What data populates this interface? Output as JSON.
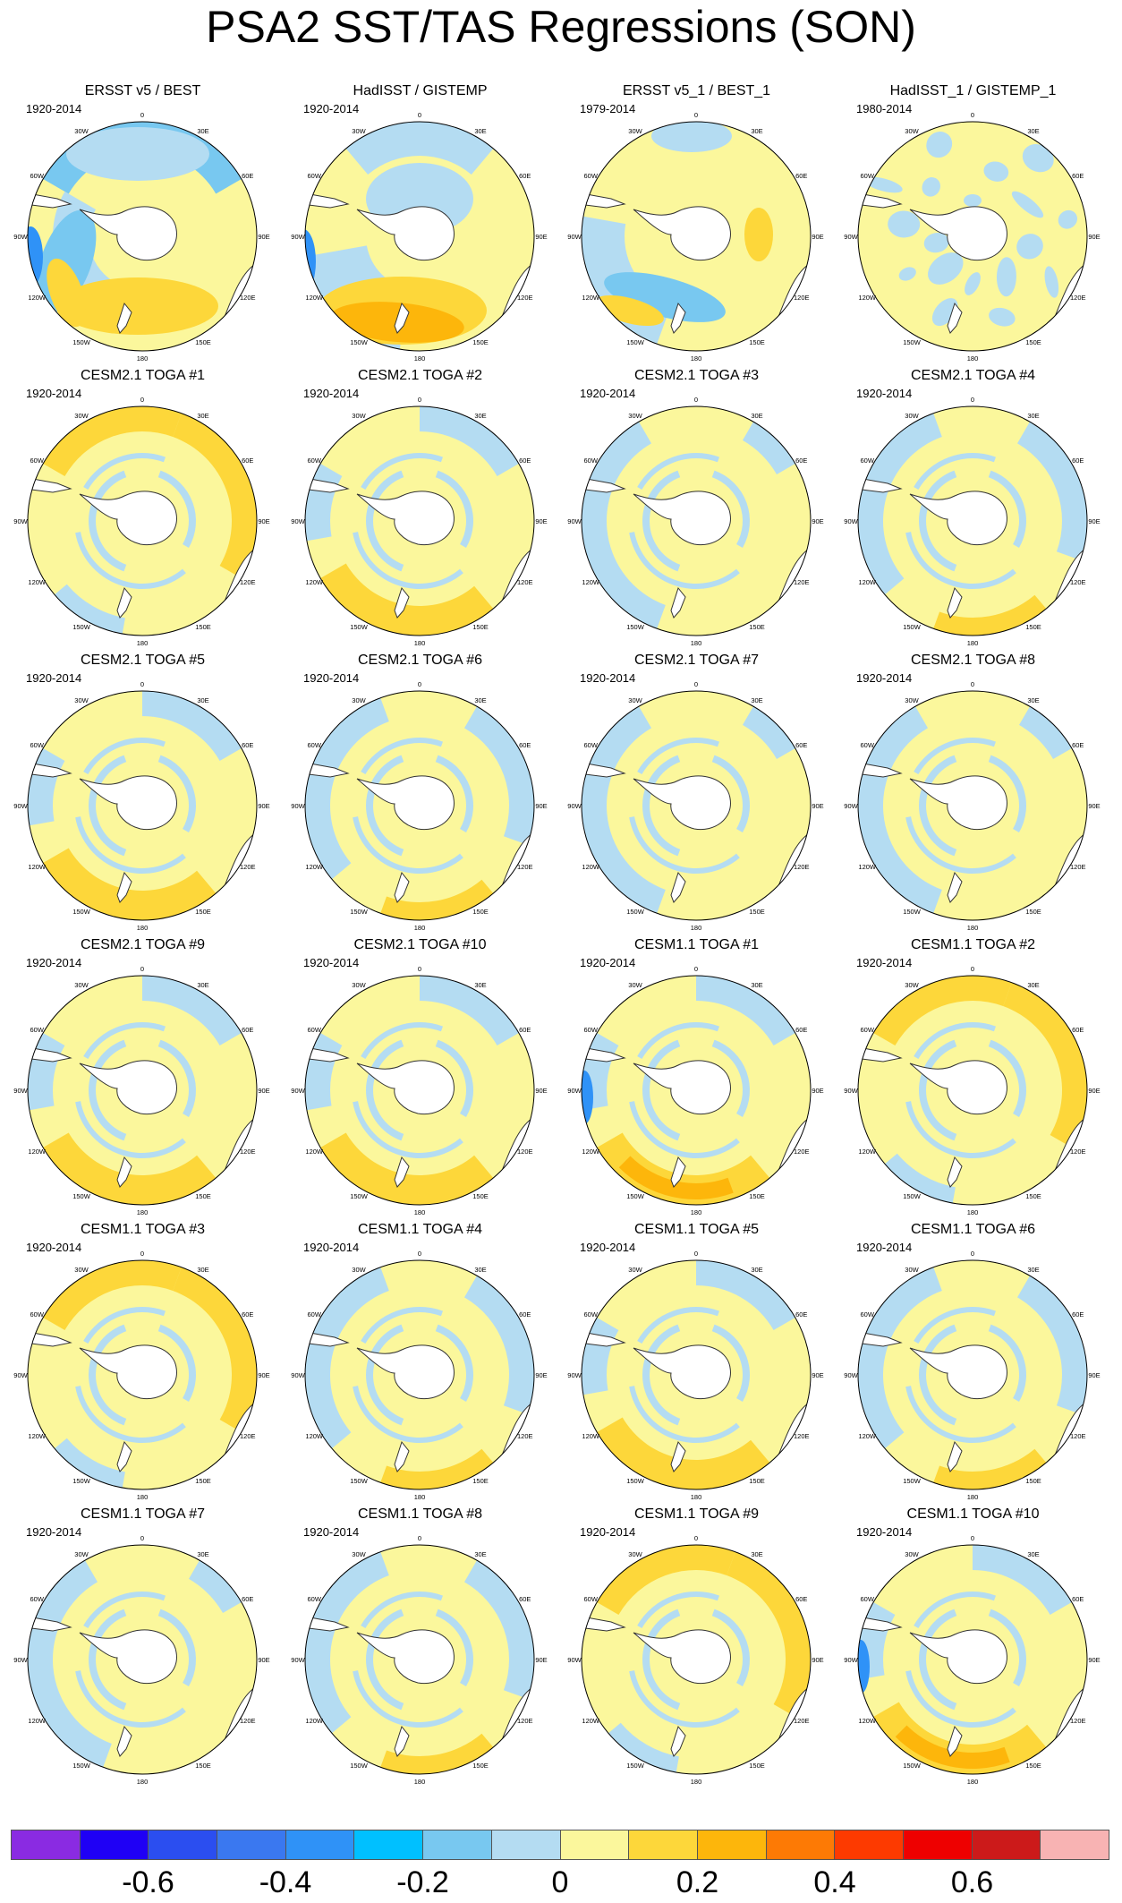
{
  "title": "PSA2 SST/TAS Regressions (SON)",
  "longitude_labels": [
    "0",
    "30E",
    "60E",
    "90E",
    "120E",
    "150E",
    "180",
    "150W",
    "120W",
    "90W",
    "60W",
    "30W"
  ],
  "panels": [
    {
      "title": "ERSST v5 / BEST",
      "years": "1920-2014",
      "pattern": "obs_ersst"
    },
    {
      "title": "HadISST / GISTEMP",
      "years": "1920-2014",
      "pattern": "obs_hadisst"
    },
    {
      "title": "ERSST v5_1 / BEST_1",
      "years": "1979-2014",
      "pattern": "obs_ersst_1"
    },
    {
      "title": "HadISST_1 / GISTEMP_1",
      "years": "1980-2014",
      "pattern": "obs_hadisst_1"
    },
    {
      "title": "CESM2.1 TOGA #1",
      "years": "1920-2014",
      "pattern": "warm_ring"
    },
    {
      "title": "CESM2.1 TOGA #2",
      "years": "1920-2014",
      "pattern": "warm_south"
    },
    {
      "title": "CESM2.1 TOGA #3",
      "years": "1920-2014",
      "pattern": "neutral"
    },
    {
      "title": "CESM2.1 TOGA #4",
      "years": "1920-2014",
      "pattern": "neutral_blue"
    },
    {
      "title": "CESM2.1 TOGA #5",
      "years": "1920-2014",
      "pattern": "warm_south"
    },
    {
      "title": "CESM2.1 TOGA #6",
      "years": "1920-2014",
      "pattern": "neutral_blue"
    },
    {
      "title": "CESM2.1 TOGA #7",
      "years": "1920-2014",
      "pattern": "neutral"
    },
    {
      "title": "CESM2.1 TOGA #8",
      "years": "1920-2014",
      "pattern": "neutral"
    },
    {
      "title": "CESM2.1 TOGA #9",
      "years": "1920-2014",
      "pattern": "warm_south"
    },
    {
      "title": "CESM2.1 TOGA #10",
      "years": "1920-2014",
      "pattern": "warm_south"
    },
    {
      "title": "CESM1.1 TOGA #1",
      "years": "1920-2014",
      "pattern": "warm_south_strong"
    },
    {
      "title": "CESM1.1 TOGA #2",
      "years": "1920-2014",
      "pattern": "warm_ring"
    },
    {
      "title": "CESM1.1 TOGA #3",
      "years": "1920-2014",
      "pattern": "warm_ring"
    },
    {
      "title": "CESM1.1 TOGA #4",
      "years": "1920-2014",
      "pattern": "neutral_blue"
    },
    {
      "title": "CESM1.1 TOGA #5",
      "years": "1920-2014",
      "pattern": "warm_south"
    },
    {
      "title": "CESM1.1 TOGA #6",
      "years": "1920-2014",
      "pattern": "neutral_blue"
    },
    {
      "title": "CESM1.1 TOGA #7",
      "years": "1920-2014",
      "pattern": "neutral"
    },
    {
      "title": "CESM1.1 TOGA #8",
      "years": "1920-2014",
      "pattern": "neutral_blue"
    },
    {
      "title": "CESM1.1 TOGA #9",
      "years": "1920-2014",
      "pattern": "warm_ring"
    },
    {
      "title": "CESM1.1 TOGA #10",
      "years": "1920-2014",
      "pattern": "warm_south_strong"
    }
  ],
  "colorbar": {
    "colors": [
      "#8a2be2",
      "#1f00f5",
      "#2b4ef0",
      "#3a78f0",
      "#2f92f7",
      "#00c0ff",
      "#78c8f0",
      "#b4dcf2",
      "#fbf79c",
      "#fdd73a",
      "#fdb60b",
      "#fd7a05",
      "#fd3a00",
      "#ee0000",
      "#cc1a1a",
      "#f8b3b3"
    ],
    "tick_labels": [
      "-0.6",
      "-0.4",
      "-0.2",
      "0",
      "0.2",
      "0.4",
      "0.6"
    ],
    "tick_boundary_index": [
      2,
      4,
      6,
      8,
      10,
      12,
      14
    ]
  },
  "palette": {
    "neutral_warm": "#fbf79c",
    "light_blue": "#b4dcf2",
    "mid_blue": "#78c8f0",
    "cyan": "#2f92f7",
    "gold": "#fdd73a",
    "orange": "#fdb60b",
    "dark_orange": "#fd7a05",
    "land": "#ffffff",
    "coast": "#333333"
  }
}
